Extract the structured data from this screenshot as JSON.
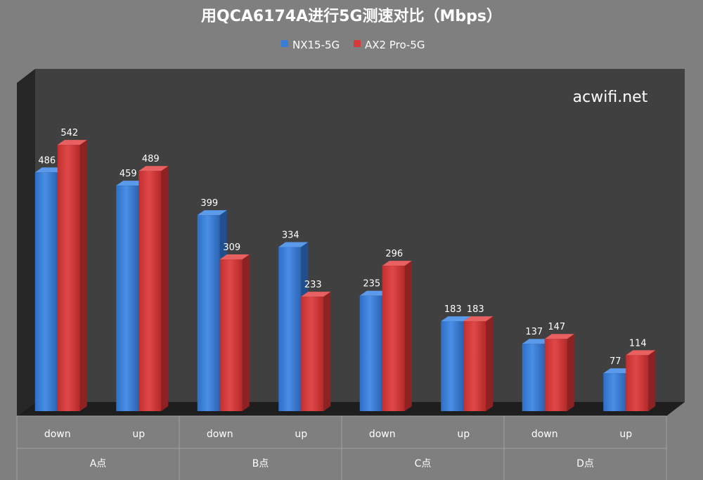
{
  "chart_data": {
    "type": "bar",
    "title": "用QCA6174A进行5G测速对比（Mbps）",
    "xlabel": "",
    "ylabel": "",
    "ylim": [
      0,
      600
    ],
    "grid": false,
    "legend_position": "top-center",
    "watermark": "acwifi.net",
    "groups": [
      {
        "label": "A点",
        "categories": [
          "down",
          "up"
        ]
      },
      {
        "label": "B点",
        "categories": [
          "down",
          "up"
        ]
      },
      {
        "label": "C点",
        "categories": [
          "down",
          "up"
        ]
      },
      {
        "label": "D点",
        "categories": [
          "down",
          "up"
        ]
      }
    ],
    "categories": [
      "A点 down",
      "A点 up",
      "B点 down",
      "B点 up",
      "C点 down",
      "C点 up",
      "D点 down",
      "D点 up"
    ],
    "series": [
      {
        "name": "NX15-5G",
        "color": "#3a7dd6",
        "values": [
          486,
          459,
          399,
          334,
          235,
          183,
          137,
          77
        ]
      },
      {
        "name": "AX2 Pro-5G",
        "color": "#d63a3a",
        "values": [
          542,
          489,
          309,
          233,
          296,
          183,
          147,
          114
        ]
      }
    ]
  }
}
